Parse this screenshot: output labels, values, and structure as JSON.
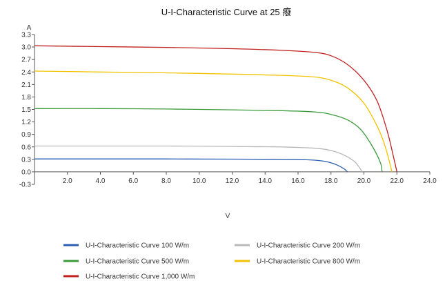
{
  "chart_data": {
    "type": "line",
    "title": "U-I-Characteristic Curve at 25 癈",
    "xlabel": "V",
    "ylabel": "A",
    "xlim": [
      0,
      24
    ],
    "ylim": [
      -0.3,
      3.3
    ],
    "x_ticks": [
      "2.0",
      "4.0",
      "6.0",
      "8.0",
      "10.0",
      "12.0",
      "14.0",
      "16.0",
      "18.0",
      "20.0",
      "22.0",
      "24.0"
    ],
    "y_ticks": [
      "3.3",
      "3.0",
      "2.7",
      "2.4",
      "2.1",
      "1.8",
      "1.5",
      "1.2",
      "0.9",
      "0.6",
      "0.3",
      "0.0",
      "-0.3"
    ],
    "grid": false,
    "legend_position": "bottom",
    "series": [
      {
        "name": "U-I-Characteristic Curve 100 W/m",
        "color": "#2b5fb4",
        "points": [
          [
            0,
            0.31
          ],
          [
            4,
            0.31
          ],
          [
            8,
            0.31
          ],
          [
            12,
            0.305
          ],
          [
            15,
            0.3
          ],
          [
            16.5,
            0.29
          ],
          [
            17.3,
            0.27
          ],
          [
            17.9,
            0.23
          ],
          [
            18.4,
            0.16
          ],
          [
            18.8,
            0.07
          ],
          [
            19.0,
            0.0
          ]
        ]
      },
      {
        "name": "U-I-Characteristic Curve 200 W/m",
        "color": "#b8b8b8",
        "points": [
          [
            0,
            0.62
          ],
          [
            4,
            0.62
          ],
          [
            8,
            0.62
          ],
          [
            12,
            0.61
          ],
          [
            15,
            0.6
          ],
          [
            16.5,
            0.58
          ],
          [
            17.5,
            0.55
          ],
          [
            18.3,
            0.48
          ],
          [
            19.0,
            0.36
          ],
          [
            19.5,
            0.22
          ],
          [
            19.9,
            0.0
          ]
        ]
      },
      {
        "name": "U-I-Characteristic Curve 500 W/m",
        "color": "#3a9a3a",
        "points": [
          [
            0,
            1.52
          ],
          [
            4,
            1.52
          ],
          [
            8,
            1.51
          ],
          [
            12,
            1.49
          ],
          [
            15,
            1.47
          ],
          [
            17,
            1.44
          ],
          [
            18,
            1.38
          ],
          [
            19,
            1.25
          ],
          [
            19.8,
            1.02
          ],
          [
            20.5,
            0.62
          ],
          [
            21.0,
            0.22
          ],
          [
            21.1,
            0.0
          ]
        ]
      },
      {
        "name": "U-I-Characteristic Curve 800 W/m",
        "color": "#f2c200",
        "points": [
          [
            0,
            2.42
          ],
          [
            4,
            2.4
          ],
          [
            8,
            2.38
          ],
          [
            12,
            2.35
          ],
          [
            15,
            2.32
          ],
          [
            17,
            2.28
          ],
          [
            18,
            2.2
          ],
          [
            19,
            2.02
          ],
          [
            20,
            1.65
          ],
          [
            20.8,
            1.1
          ],
          [
            21.3,
            0.6
          ],
          [
            21.7,
            0.0
          ]
        ]
      },
      {
        "name": "U-I-Characteristic Curve 1,000 W/m",
        "color": "#c02020",
        "points": [
          [
            0,
            3.03
          ],
          [
            4,
            3.01
          ],
          [
            8,
            2.99
          ],
          [
            12,
            2.96
          ],
          [
            15,
            2.92
          ],
          [
            17,
            2.87
          ],
          [
            18,
            2.79
          ],
          [
            19,
            2.58
          ],
          [
            20,
            2.2
          ],
          [
            20.8,
            1.7
          ],
          [
            21.4,
            1.0
          ],
          [
            21.8,
            0.35
          ],
          [
            22.0,
            0.0
          ]
        ]
      }
    ]
  }
}
